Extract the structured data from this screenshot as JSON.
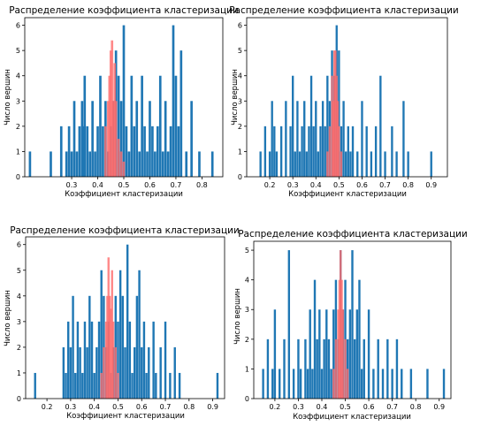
{
  "colors": {
    "blue": "#1f77b4",
    "red": "#ff6b6b",
    "axis": "#000000"
  },
  "chart_data": [
    {
      "type": "bar",
      "title": "Распределение коэффициента кластеризации",
      "xlabel": "Коэффициент кластеризации",
      "ylabel": "Число вершин",
      "xlim": [
        0.12,
        0.88
      ],
      "ylim": [
        0,
        6.3
      ],
      "xticks": [
        "0.3",
        "0.4",
        "0.5",
        "0.6",
        "0.7",
        "0.8"
      ],
      "yticks": [
        "0",
        "1",
        "2",
        "3",
        "4",
        "5",
        "6"
      ],
      "series": [
        {
          "values": [
            [
              0.14,
              1
            ],
            [
              0.22,
              1
            ],
            [
              0.26,
              2
            ],
            [
              0.28,
              1
            ],
            [
              0.29,
              2
            ],
            [
              0.3,
              1
            ],
            [
              0.31,
              3
            ],
            [
              0.32,
              1
            ],
            [
              0.33,
              2
            ],
            [
              0.34,
              3
            ],
            [
              0.345,
              2
            ],
            [
              0.35,
              4
            ],
            [
              0.36,
              2
            ],
            [
              0.37,
              1
            ],
            [
              0.38,
              3
            ],
            [
              0.39,
              1
            ],
            [
              0.4,
              2
            ],
            [
              0.41,
              4
            ],
            [
              0.42,
              2
            ],
            [
              0.43,
              3
            ],
            [
              0.44,
              1
            ],
            [
              0.45,
              2
            ],
            [
              0.46,
              3
            ],
            [
              0.47,
              5
            ],
            [
              0.48,
              4
            ],
            [
              0.49,
              3
            ],
            [
              0.5,
              6
            ],
            [
              0.51,
              2
            ],
            [
              0.52,
              1
            ],
            [
              0.53,
              4
            ],
            [
              0.54,
              2
            ],
            [
              0.55,
              3
            ],
            [
              0.56,
              1
            ],
            [
              0.57,
              4
            ],
            [
              0.58,
              2
            ],
            [
              0.59,
              1
            ],
            [
              0.6,
              3
            ],
            [
              0.61,
              2
            ],
            [
              0.62,
              1
            ],
            [
              0.63,
              2
            ],
            [
              0.64,
              4
            ],
            [
              0.65,
              1
            ],
            [
              0.66,
              3
            ],
            [
              0.67,
              1
            ],
            [
              0.68,
              2
            ],
            [
              0.69,
              6
            ],
            [
              0.7,
              4
            ],
            [
              0.71,
              2
            ],
            [
              0.72,
              5
            ],
            [
              0.74,
              1
            ],
            [
              0.76,
              3
            ],
            [
              0.79,
              1
            ],
            [
              0.84,
              1
            ]
          ]
        },
        {
          "values": [
            [
              0.43,
              2
            ],
            [
              0.44,
              3
            ],
            [
              0.445,
              4
            ],
            [
              0.45,
              5
            ],
            [
              0.455,
              5.4
            ],
            [
              0.46,
              3
            ],
            [
              0.465,
              4.5
            ],
            [
              0.47,
              3
            ],
            [
              0.48,
              1.5
            ],
            [
              0.49,
              1
            ],
            [
              0.5,
              0.6
            ]
          ]
        }
      ]
    },
    {
      "type": "bar",
      "title": "Распределение коэффициента кластеризации",
      "xlabel": "Коэффициент кластеризации",
      "ylabel": "Число вершин",
      "xlim": [
        0.1,
        0.97
      ],
      "ylim": [
        0,
        6.3
      ],
      "xticks": [
        "0.2",
        "0.3",
        "0.4",
        "0.5",
        "0.6",
        "0.7",
        "0.8",
        "0.9"
      ],
      "yticks": [
        "0",
        "1",
        "2",
        "3",
        "4",
        "5",
        "6"
      ],
      "series": [
        {
          "values": [
            [
              0.16,
              1
            ],
            [
              0.18,
              2
            ],
            [
              0.2,
              1
            ],
            [
              0.21,
              3
            ],
            [
              0.22,
              2
            ],
            [
              0.23,
              1
            ],
            [
              0.25,
              2
            ],
            [
              0.27,
              3
            ],
            [
              0.29,
              2
            ],
            [
              0.3,
              4
            ],
            [
              0.31,
              1
            ],
            [
              0.32,
              3
            ],
            [
              0.33,
              1
            ],
            [
              0.34,
              2
            ],
            [
              0.35,
              3
            ],
            [
              0.36,
              1
            ],
            [
              0.37,
              2
            ],
            [
              0.38,
              4
            ],
            [
              0.39,
              2
            ],
            [
              0.4,
              3
            ],
            [
              0.41,
              1
            ],
            [
              0.42,
              2
            ],
            [
              0.43,
              3
            ],
            [
              0.44,
              2
            ],
            [
              0.45,
              4
            ],
            [
              0.46,
              3
            ],
            [
              0.47,
              5
            ],
            [
              0.48,
              4
            ],
            [
              0.49,
              6
            ],
            [
              0.5,
              5
            ],
            [
              0.51,
              2
            ],
            [
              0.52,
              3
            ],
            [
              0.53,
              1
            ],
            [
              0.54,
              2
            ],
            [
              0.55,
              1
            ],
            [
              0.56,
              2
            ],
            [
              0.58,
              1
            ],
            [
              0.6,
              3
            ],
            [
              0.62,
              2
            ],
            [
              0.64,
              1
            ],
            [
              0.66,
              2
            ],
            [
              0.68,
              4
            ],
            [
              0.7,
              1
            ],
            [
              0.73,
              2
            ],
            [
              0.75,
              1
            ],
            [
              0.78,
              3
            ],
            [
              0.8,
              1
            ],
            [
              0.9,
              1
            ]
          ]
        },
        {
          "values": [
            [
              0.45,
              1
            ],
            [
              0.46,
              2
            ],
            [
              0.47,
              4
            ],
            [
              0.475,
              3
            ],
            [
              0.48,
              5
            ],
            [
              0.485,
              5
            ],
            [
              0.49,
              4
            ],
            [
              0.495,
              3
            ],
            [
              0.5,
              2
            ],
            [
              0.51,
              1
            ]
          ]
        }
      ]
    },
    {
      "type": "bar",
      "title": "Распределение коэффициента кластеризации",
      "xlabel": "Коэффициент кластеризации",
      "ylabel": "Число вершин",
      "xlim": [
        0.11,
        0.95
      ],
      "ylim": [
        0,
        6.3
      ],
      "xticks": [
        "0.2",
        "0.3",
        "0.4",
        "0.5",
        "0.6",
        "0.7",
        "0.8",
        "0.9"
      ],
      "yticks": [
        "0",
        "1",
        "2",
        "3",
        "4",
        "5",
        "6"
      ],
      "series": [
        {
          "values": [
            [
              0.15,
              1
            ],
            [
              0.27,
              2
            ],
            [
              0.28,
              1
            ],
            [
              0.29,
              3
            ],
            [
              0.3,
              2
            ],
            [
              0.31,
              4
            ],
            [
              0.32,
              1
            ],
            [
              0.33,
              3
            ],
            [
              0.34,
              2
            ],
            [
              0.35,
              1
            ],
            [
              0.36,
              3
            ],
            [
              0.37,
              2
            ],
            [
              0.38,
              4
            ],
            [
              0.39,
              3
            ],
            [
              0.4,
              1
            ],
            [
              0.41,
              2
            ],
            [
              0.42,
              3
            ],
            [
              0.43,
              5
            ],
            [
              0.44,
              4
            ],
            [
              0.45,
              2
            ],
            [
              0.46,
              3
            ],
            [
              0.47,
              1
            ],
            [
              0.48,
              2
            ],
            [
              0.49,
              4
            ],
            [
              0.5,
              3
            ],
            [
              0.51,
              5
            ],
            [
              0.52,
              4
            ],
            [
              0.53,
              2
            ],
            [
              0.54,
              6
            ],
            [
              0.55,
              3
            ],
            [
              0.56,
              1
            ],
            [
              0.57,
              2
            ],
            [
              0.58,
              4
            ],
            [
              0.59,
              5
            ],
            [
              0.6,
              2
            ],
            [
              0.61,
              3
            ],
            [
              0.62,
              1
            ],
            [
              0.63,
              2
            ],
            [
              0.65,
              3
            ],
            [
              0.66,
              1
            ],
            [
              0.68,
              2
            ],
            [
              0.7,
              3
            ],
            [
              0.72,
              1
            ],
            [
              0.74,
              2
            ],
            [
              0.76,
              1
            ],
            [
              0.92,
              1
            ]
          ]
        },
        {
          "values": [
            [
              0.43,
              1
            ],
            [
              0.44,
              2
            ],
            [
              0.45,
              3
            ],
            [
              0.455,
              4
            ],
            [
              0.46,
              5.5
            ],
            [
              0.465,
              4
            ],
            [
              0.47,
              3.5
            ],
            [
              0.475,
              5
            ],
            [
              0.48,
              3
            ],
            [
              0.49,
              2
            ],
            [
              0.5,
              1
            ]
          ]
        }
      ]
    },
    {
      "type": "bar",
      "title": "Распределение коэффициента кластеризации",
      "xlabel": "Коэффициент кластеризации",
      "ylabel": "Число вершин",
      "xlim": [
        0.11,
        0.95
      ],
      "ylim": [
        0,
        5.3
      ],
      "xticks": [
        "0.2",
        "0.3",
        "0.4",
        "0.5",
        "0.6",
        "0.7",
        "0.8",
        "0.9"
      ],
      "yticks": [
        "0",
        "1",
        "2",
        "3",
        "4",
        "5"
      ],
      "series": [
        {
          "values": [
            [
              0.15,
              1
            ],
            [
              0.17,
              2
            ],
            [
              0.19,
              1
            ],
            [
              0.2,
              3
            ],
            [
              0.22,
              1
            ],
            [
              0.24,
              2
            ],
            [
              0.26,
              5
            ],
            [
              0.28,
              1
            ],
            [
              0.3,
              2
            ],
            [
              0.31,
              1
            ],
            [
              0.33,
              2
            ],
            [
              0.34,
              1
            ],
            [
              0.35,
              3
            ],
            [
              0.36,
              1
            ],
            [
              0.37,
              4
            ],
            [
              0.38,
              2
            ],
            [
              0.39,
              3
            ],
            [
              0.4,
              1
            ],
            [
              0.41,
              2
            ],
            [
              0.42,
              3
            ],
            [
              0.43,
              2
            ],
            [
              0.44,
              1
            ],
            [
              0.45,
              3
            ],
            [
              0.46,
              4
            ],
            [
              0.47,
              2
            ],
            [
              0.48,
              5
            ],
            [
              0.49,
              3
            ],
            [
              0.5,
              4
            ],
            [
              0.51,
              2
            ],
            [
              0.52,
              3
            ],
            [
              0.53,
              5
            ],
            [
              0.54,
              2
            ],
            [
              0.55,
              3
            ],
            [
              0.56,
              4
            ],
            [
              0.57,
              1
            ],
            [
              0.58,
              2
            ],
            [
              0.6,
              3
            ],
            [
              0.62,
              1
            ],
            [
              0.64,
              2
            ],
            [
              0.66,
              1
            ],
            [
              0.68,
              2
            ],
            [
              0.7,
              1
            ],
            [
              0.72,
              2
            ],
            [
              0.74,
              1
            ],
            [
              0.78,
              1
            ],
            [
              0.85,
              1
            ],
            [
              0.92,
              1
            ]
          ]
        },
        {
          "values": [
            [
              0.45,
              1
            ],
            [
              0.46,
              2
            ],
            [
              0.47,
              3
            ],
            [
              0.475,
              4
            ],
            [
              0.48,
              5
            ],
            [
              0.485,
              4
            ],
            [
              0.49,
              3
            ],
            [
              0.5,
              2
            ],
            [
              0.51,
              1
            ]
          ]
        }
      ]
    }
  ]
}
